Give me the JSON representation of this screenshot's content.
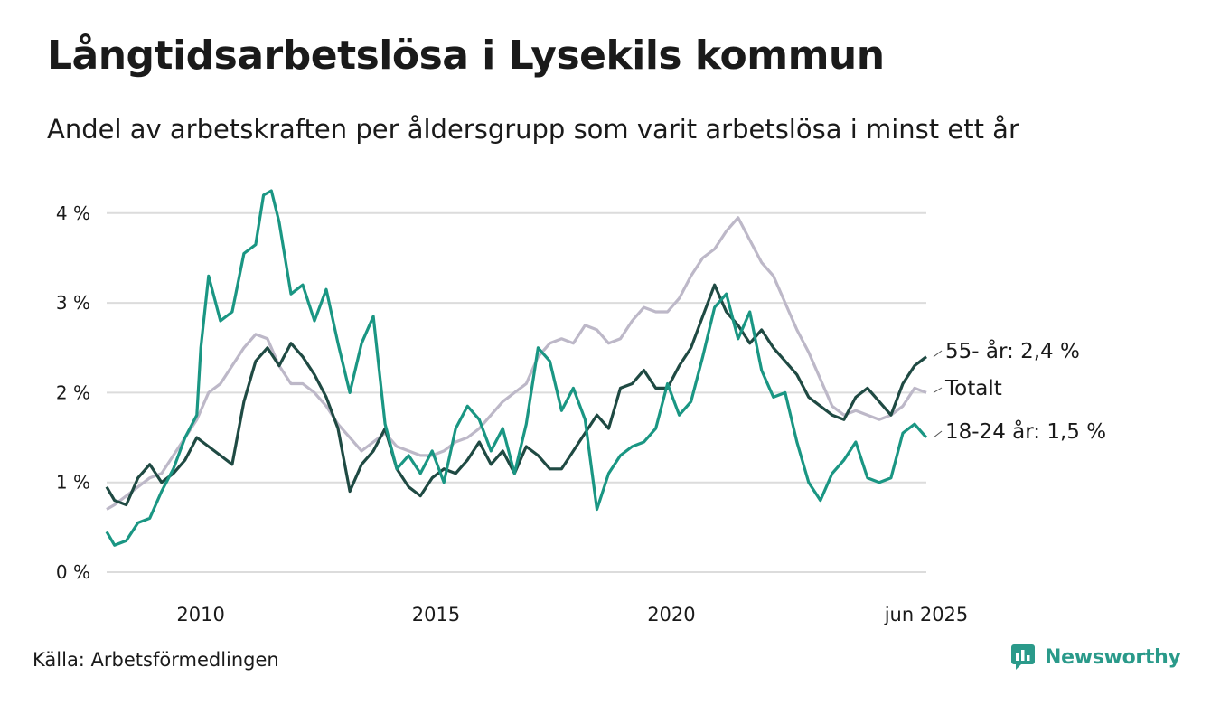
{
  "header": {
    "title": "Långtidsarbetslösa i Lysekils kommun",
    "subtitle": "Andel av arbetskraften per åldersgrupp som varit arbetslösa i minst ett år"
  },
  "footer": {
    "source": "Källa: Arbetsförmedlingen",
    "brand": "Newsworthy"
  },
  "colors": {
    "totalt": "#bdb8c8",
    "age_55": "#1f4a43",
    "age_18_24": "#1a9683",
    "grid": "#dcdcdc",
    "brand": "#2a9a8a"
  },
  "chart_data": {
    "type": "line",
    "xlabel": "",
    "ylabel": "",
    "x_start": "2008-01",
    "x_end": "2025-06",
    "ylim": [
      0,
      4.4
    ],
    "y_ticks": [
      0,
      1,
      2,
      3,
      4
    ],
    "y_tick_labels": [
      "0 %",
      "1 %",
      "2 %",
      "3 %",
      "4 %"
    ],
    "x_ticks": [
      "2010-01",
      "2015-01",
      "2020-01",
      "2025-06"
    ],
    "x_tick_labels": [
      "2010",
      "2015",
      "2020",
      "jun 2025"
    ],
    "grid": "horizontal",
    "legend": "end labels right",
    "series": [
      {
        "key": "totalt",
        "name": "Totalt",
        "end_label": "Totalt",
        "points": [
          [
            "2008-01",
            0.7
          ],
          [
            "2008-03",
            0.75
          ],
          [
            "2008-06",
            0.85
          ],
          [
            "2008-09",
            0.95
          ],
          [
            "2008-12",
            1.05
          ],
          [
            "2009-03",
            1.1
          ],
          [
            "2009-06",
            1.3
          ],
          [
            "2009-09",
            1.5
          ],
          [
            "2009-12",
            1.7
          ],
          [
            "2010-03",
            2.0
          ],
          [
            "2010-06",
            2.1
          ],
          [
            "2010-09",
            2.3
          ],
          [
            "2010-12",
            2.5
          ],
          [
            "2011-03",
            2.65
          ],
          [
            "2011-06",
            2.6
          ],
          [
            "2011-09",
            2.3
          ],
          [
            "2011-12",
            2.1
          ],
          [
            "2012-03",
            2.1
          ],
          [
            "2012-06",
            2.0
          ],
          [
            "2012-09",
            1.85
          ],
          [
            "2012-12",
            1.65
          ],
          [
            "2013-03",
            1.5
          ],
          [
            "2013-06",
            1.35
          ],
          [
            "2013-09",
            1.45
          ],
          [
            "2013-12",
            1.55
          ],
          [
            "2014-03",
            1.4
          ],
          [
            "2014-06",
            1.35
          ],
          [
            "2014-09",
            1.3
          ],
          [
            "2014-12",
            1.3
          ],
          [
            "2015-03",
            1.35
          ],
          [
            "2015-06",
            1.45
          ],
          [
            "2015-09",
            1.5
          ],
          [
            "2015-12",
            1.6
          ],
          [
            "2016-03",
            1.75
          ],
          [
            "2016-06",
            1.9
          ],
          [
            "2016-09",
            2.0
          ],
          [
            "2016-12",
            2.1
          ],
          [
            "2017-03",
            2.4
          ],
          [
            "2017-06",
            2.55
          ],
          [
            "2017-09",
            2.6
          ],
          [
            "2017-12",
            2.55
          ],
          [
            "2018-03",
            2.75
          ],
          [
            "2018-06",
            2.7
          ],
          [
            "2018-09",
            2.55
          ],
          [
            "2018-12",
            2.6
          ],
          [
            "2019-03",
            2.8
          ],
          [
            "2019-06",
            2.95
          ],
          [
            "2019-09",
            2.9
          ],
          [
            "2019-12",
            2.9
          ],
          [
            "2020-03",
            3.05
          ],
          [
            "2020-06",
            3.3
          ],
          [
            "2020-09",
            3.5
          ],
          [
            "2020-12",
            3.6
          ],
          [
            "2021-03",
            3.8
          ],
          [
            "2021-06",
            3.95
          ],
          [
            "2021-09",
            3.7
          ],
          [
            "2021-12",
            3.45
          ],
          [
            "2022-03",
            3.3
          ],
          [
            "2022-06",
            3.0
          ],
          [
            "2022-09",
            2.7
          ],
          [
            "2022-12",
            2.45
          ],
          [
            "2023-03",
            2.15
          ],
          [
            "2023-06",
            1.85
          ],
          [
            "2023-09",
            1.75
          ],
          [
            "2023-12",
            1.8
          ],
          [
            "2024-03",
            1.75
          ],
          [
            "2024-06",
            1.7
          ],
          [
            "2024-09",
            1.75
          ],
          [
            "2024-12",
            1.85
          ],
          [
            "2025-03",
            2.05
          ],
          [
            "2025-06",
            2.0
          ]
        ]
      },
      {
        "key": "age_55",
        "name": "55- år",
        "end_label": "55- år: 2,4 %",
        "points": [
          [
            "2008-01",
            0.95
          ],
          [
            "2008-03",
            0.8
          ],
          [
            "2008-06",
            0.75
          ],
          [
            "2008-09",
            1.05
          ],
          [
            "2008-12",
            1.2
          ],
          [
            "2009-03",
            1.0
          ],
          [
            "2009-06",
            1.1
          ],
          [
            "2009-09",
            1.25
          ],
          [
            "2009-12",
            1.5
          ],
          [
            "2010-03",
            1.4
          ],
          [
            "2010-06",
            1.3
          ],
          [
            "2010-09",
            1.2
          ],
          [
            "2010-12",
            1.9
          ],
          [
            "2011-03",
            2.35
          ],
          [
            "2011-06",
            2.5
          ],
          [
            "2011-09",
            2.3
          ],
          [
            "2011-12",
            2.55
          ],
          [
            "2012-03",
            2.4
          ],
          [
            "2012-06",
            2.2
          ],
          [
            "2012-09",
            1.95
          ],
          [
            "2012-12",
            1.6
          ],
          [
            "2013-03",
            0.9
          ],
          [
            "2013-06",
            1.2
          ],
          [
            "2013-09",
            1.35
          ],
          [
            "2013-12",
            1.6
          ],
          [
            "2014-03",
            1.15
          ],
          [
            "2014-06",
            0.95
          ],
          [
            "2014-09",
            0.85
          ],
          [
            "2014-12",
            1.05
          ],
          [
            "2015-03",
            1.15
          ],
          [
            "2015-06",
            1.1
          ],
          [
            "2015-09",
            1.25
          ],
          [
            "2015-12",
            1.45
          ],
          [
            "2016-03",
            1.2
          ],
          [
            "2016-06",
            1.35
          ],
          [
            "2016-09",
            1.1
          ],
          [
            "2016-12",
            1.4
          ],
          [
            "2017-03",
            1.3
          ],
          [
            "2017-06",
            1.15
          ],
          [
            "2017-09",
            1.15
          ],
          [
            "2017-12",
            1.35
          ],
          [
            "2018-03",
            1.55
          ],
          [
            "2018-06",
            1.75
          ],
          [
            "2018-09",
            1.6
          ],
          [
            "2018-12",
            2.05
          ],
          [
            "2019-03",
            2.1
          ],
          [
            "2019-06",
            2.25
          ],
          [
            "2019-09",
            2.05
          ],
          [
            "2019-12",
            2.05
          ],
          [
            "2020-03",
            2.3
          ],
          [
            "2020-06",
            2.5
          ],
          [
            "2020-09",
            2.85
          ],
          [
            "2020-12",
            3.2
          ],
          [
            "2021-03",
            2.9
          ],
          [
            "2021-06",
            2.75
          ],
          [
            "2021-09",
            2.55
          ],
          [
            "2021-12",
            2.7
          ],
          [
            "2022-03",
            2.5
          ],
          [
            "2022-06",
            2.35
          ],
          [
            "2022-09",
            2.2
          ],
          [
            "2022-12",
            1.95
          ],
          [
            "2023-03",
            1.85
          ],
          [
            "2023-06",
            1.75
          ],
          [
            "2023-09",
            1.7
          ],
          [
            "2023-12",
            1.95
          ],
          [
            "2024-03",
            2.05
          ],
          [
            "2024-06",
            1.9
          ],
          [
            "2024-09",
            1.75
          ],
          [
            "2024-12",
            2.1
          ],
          [
            "2025-03",
            2.3
          ],
          [
            "2025-06",
            2.4
          ]
        ]
      },
      {
        "key": "age_18_24",
        "name": "18-24 år",
        "end_label": "18-24 år: 1,5 %",
        "points": [
          [
            "2008-01",
            0.45
          ],
          [
            "2008-03",
            0.3
          ],
          [
            "2008-06",
            0.35
          ],
          [
            "2008-09",
            0.55
          ],
          [
            "2008-12",
            0.6
          ],
          [
            "2009-03",
            0.9
          ],
          [
            "2009-06",
            1.15
          ],
          [
            "2009-09",
            1.5
          ],
          [
            "2009-12",
            1.75
          ],
          [
            "2010-01",
            2.5
          ],
          [
            "2010-03",
            3.3
          ],
          [
            "2010-06",
            2.8
          ],
          [
            "2010-09",
            2.9
          ],
          [
            "2010-12",
            3.55
          ],
          [
            "2011-03",
            3.65
          ],
          [
            "2011-05",
            4.2
          ],
          [
            "2011-07",
            4.25
          ],
          [
            "2011-09",
            3.9
          ],
          [
            "2011-12",
            3.1
          ],
          [
            "2012-03",
            3.2
          ],
          [
            "2012-06",
            2.8
          ],
          [
            "2012-09",
            3.15
          ],
          [
            "2012-12",
            2.55
          ],
          [
            "2013-03",
            2.0
          ],
          [
            "2013-06",
            2.55
          ],
          [
            "2013-09",
            2.85
          ],
          [
            "2013-12",
            1.65
          ],
          [
            "2014-03",
            1.15
          ],
          [
            "2014-06",
            1.3
          ],
          [
            "2014-09",
            1.1
          ],
          [
            "2014-12",
            1.35
          ],
          [
            "2015-03",
            1.0
          ],
          [
            "2015-06",
            1.6
          ],
          [
            "2015-09",
            1.85
          ],
          [
            "2015-12",
            1.7
          ],
          [
            "2016-03",
            1.35
          ],
          [
            "2016-06",
            1.6
          ],
          [
            "2016-09",
            1.1
          ],
          [
            "2016-12",
            1.65
          ],
          [
            "2017-03",
            2.5
          ],
          [
            "2017-06",
            2.35
          ],
          [
            "2017-09",
            1.8
          ],
          [
            "2017-12",
            2.05
          ],
          [
            "2018-03",
            1.7
          ],
          [
            "2018-06",
            0.7
          ],
          [
            "2018-09",
            1.1
          ],
          [
            "2018-12",
            1.3
          ],
          [
            "2019-03",
            1.4
          ],
          [
            "2019-06",
            1.45
          ],
          [
            "2019-09",
            1.6
          ],
          [
            "2019-12",
            2.1
          ],
          [
            "2020-03",
            1.75
          ],
          [
            "2020-06",
            1.9
          ],
          [
            "2020-09",
            2.4
          ],
          [
            "2020-12",
            2.95
          ],
          [
            "2021-03",
            3.1
          ],
          [
            "2021-06",
            2.6
          ],
          [
            "2021-09",
            2.9
          ],
          [
            "2021-12",
            2.25
          ],
          [
            "2022-03",
            1.95
          ],
          [
            "2022-06",
            2.0
          ],
          [
            "2022-09",
            1.45
          ],
          [
            "2022-12",
            1.0
          ],
          [
            "2023-03",
            0.8
          ],
          [
            "2023-06",
            1.1
          ],
          [
            "2023-09",
            1.25
          ],
          [
            "2023-12",
            1.45
          ],
          [
            "2024-03",
            1.05
          ],
          [
            "2024-06",
            1.0
          ],
          [
            "2024-09",
            1.05
          ],
          [
            "2024-12",
            1.55
          ],
          [
            "2025-03",
            1.65
          ],
          [
            "2025-06",
            1.5
          ]
        ]
      }
    ]
  }
}
